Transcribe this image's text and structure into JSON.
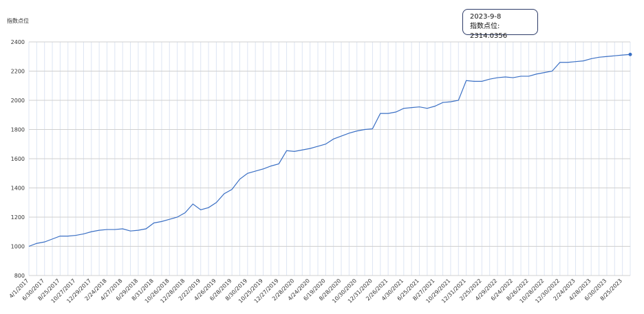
{
  "chart_data": {
    "type": "line",
    "y_label": "指数点位",
    "categories": [
      "4/1/2017",
      null,
      "6/30/2017",
      null,
      "8/25/2017",
      null,
      "10/27/2017",
      null,
      "12/29/2017",
      null,
      "2/24/2018",
      null,
      "4/27/2018",
      null,
      "6/29/2018",
      null,
      "8/31/2018",
      null,
      "10/26/2018",
      null,
      "12/28/2018",
      null,
      "2/22/2019",
      null,
      "4/26/2019",
      null,
      "6/28/2019",
      null,
      "8/30/2019",
      null,
      "10/25/2019",
      null,
      "12/27/2019",
      null,
      "2/28/2020",
      null,
      "4/24/2020",
      null,
      "6/19/2020",
      null,
      "8/28/2020",
      null,
      "10/30/2020",
      null,
      "12/31/2020",
      null,
      "2/26/2021",
      null,
      "4/30/2021",
      null,
      "6/25/2021",
      null,
      "8/27/2021",
      null,
      "10/29/2021",
      null,
      "12/31/2021",
      null,
      "2/25/2022",
      null,
      "4/29/2022",
      null,
      "6/24/2022",
      null,
      "8/26/2022",
      null,
      "10/28/2022",
      null,
      "12/30/2022",
      null,
      "2/24/2023",
      null,
      "4/28/2023",
      null,
      "6/30/2023",
      null,
      "8/25/2023",
      null
    ],
    "series": [
      {
        "name": "指数点位",
        "color": "#3a6fc4",
        "values": [
          1000,
          1020,
          1030,
          1050,
          1070,
          1070,
          1075,
          1085,
          1100,
          1110,
          1115,
          1115,
          1120,
          1105,
          1110,
          1120,
          1160,
          1170,
          1185,
          1200,
          1230,
          1290,
          1250,
          1265,
          1300,
          1360,
          1390,
          1460,
          1500,
          1515,
          1530,
          1550,
          1565,
          1655,
          1650,
          1660,
          1670,
          1685,
          1700,
          1735,
          1755,
          1775,
          1790,
          1800,
          1805,
          1910,
          1910,
          1920,
          1945,
          1950,
          1955,
          1945,
          1960,
          1985,
          1990,
          2000,
          2135,
          2130,
          2130,
          2145,
          2155,
          2160,
          2155,
          2165,
          2165,
          2180,
          2190,
          2200,
          2260,
          2260,
          2265,
          2270,
          2285,
          2295,
          2300,
          2305,
          2310,
          2314.0356
        ]
      }
    ],
    "ylim": [
      800,
      2400
    ],
    "yticks": [
      800,
      1000,
      1200,
      1400,
      1600,
      1800,
      2000,
      2200,
      2400
    ],
    "grid": true,
    "tooltip": {
      "date": "2023-9-8",
      "text": "指数点位: 2314.0356"
    }
  }
}
